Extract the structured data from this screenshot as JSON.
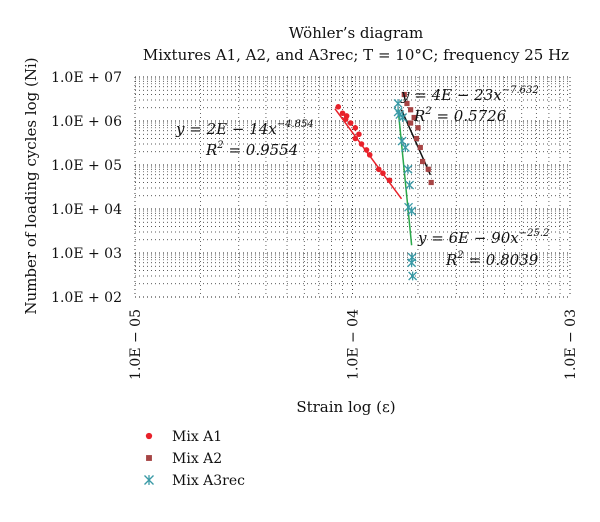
{
  "chart_data": {
    "type": "scatter",
    "title": "Wöhler’s diagram",
    "subtitle": "Mixtures A1, A2, and A3rec; T = 10°C; frequency 25 Hz",
    "xlabel": "Strain log (ε)",
    "ylabel": "Number of loading cycles log (Ni)",
    "xscale": "log",
    "yscale": "log",
    "xlim": [
      1e-05,
      0.001
    ],
    "ylim": [
      100,
      10000000
    ],
    "x_ticks": [
      {
        "value": 1e-05,
        "label": "1.0E − 05"
      },
      {
        "value": 0.0001,
        "label": "1.0E − 04"
      },
      {
        "value": 0.001,
        "label": "1.0E − 03"
      }
    ],
    "y_ticks": [
      {
        "value": 100,
        "label": "1.0E + 02"
      },
      {
        "value": 1000,
        "label": "1.0E + 03"
      },
      {
        "value": 10000,
        "label": "1.0E + 04"
      },
      {
        "value": 100000,
        "label": "1.0E + 05"
      },
      {
        "value": 1000000,
        "label": "1.0E + 06"
      },
      {
        "value": 10000000,
        "label": "1.0E + 07"
      }
    ],
    "grid": "dotted",
    "legend_position": "bottom-left",
    "series": [
      {
        "name": "Mix A1",
        "color": "#e8212a",
        "marker": "circle",
        "points": [
          [
            8.6e-05,
            2100000
          ],
          [
            9e-05,
            1500000
          ],
          [
            9.4e-05,
            1300000
          ],
          [
            9.3e-05,
            1100000
          ],
          [
            9.8e-05,
            900000
          ],
          [
            0.000103,
            700000
          ],
          [
            0.000107,
            500000
          ],
          [
            0.000103,
            400000
          ],
          [
            0.00011,
            300000
          ],
          [
            0.000116,
            220000
          ],
          [
            0.00012,
            170000
          ],
          [
            0.000132,
            80000
          ],
          [
            0.000138,
            65000
          ],
          [
            0.000148,
            45000
          ]
        ],
        "trendline": {
          "equation": "y = 2E − 14x",
          "exponent": "−4.854",
          "r2_label": "R",
          "r2_value": "= 0.9554",
          "color": "#e8212a",
          "from": [
            8.3e-05,
            1900000
          ],
          "to": [
            0.000168,
            17000
          ]
        }
      },
      {
        "name": "Mix A2",
        "color": "#a64444",
        "marker": "square",
        "points": [
          [
            0.000173,
            4000000
          ],
          [
            0.000178,
            2500000
          ],
          [
            0.000185,
            1800000
          ],
          [
            0.000192,
            1200000
          ],
          [
            0.000185,
            900000
          ],
          [
            0.0002,
            700000
          ],
          [
            0.000197,
            400000
          ],
          [
            0.000205,
            250000
          ],
          [
            0.00021,
            120000
          ],
          [
            0.000223,
            80000
          ],
          [
            0.00023,
            40000
          ]
        ],
        "trendline": {
          "equation": "y = 4E − 23x",
          "exponent": "−7.632",
          "r2_label": "R",
          "r2_value": "= 0.5726",
          "color": "#111111",
          "from": [
            0.000168,
            1800000
          ],
          "to": [
            0.000228,
            60000
          ]
        }
      },
      {
        "name": "Mix A3rec",
        "color": "#3a9aa6",
        "marker": "asterisk",
        "points": [
          [
            0.000162,
            2500000
          ],
          [
            0.000162,
            1600000
          ],
          [
            0.000165,
            1400000
          ],
          [
            0.00017,
            1200000
          ],
          [
            0.000169,
            350000
          ],
          [
            0.000175,
            250000
          ],
          [
            0.00018,
            80000
          ],
          [
            0.000183,
            35000
          ],
          [
            0.000181,
            11000
          ],
          [
            0.000187,
            9000
          ],
          [
            0.000188,
            800
          ],
          [
            0.000187,
            600
          ],
          [
            0.000189,
            300
          ]
        ],
        "trendline": {
          "equation": "y = 6E − 90x",
          "exponent": "−25.2",
          "r2_label": "R",
          "r2_value": "= 0.8039",
          "color": "#2aa84a",
          "from": [
            0.000162,
            1900000
          ],
          "to": [
            0.000187,
            1500
          ]
        }
      }
    ]
  }
}
